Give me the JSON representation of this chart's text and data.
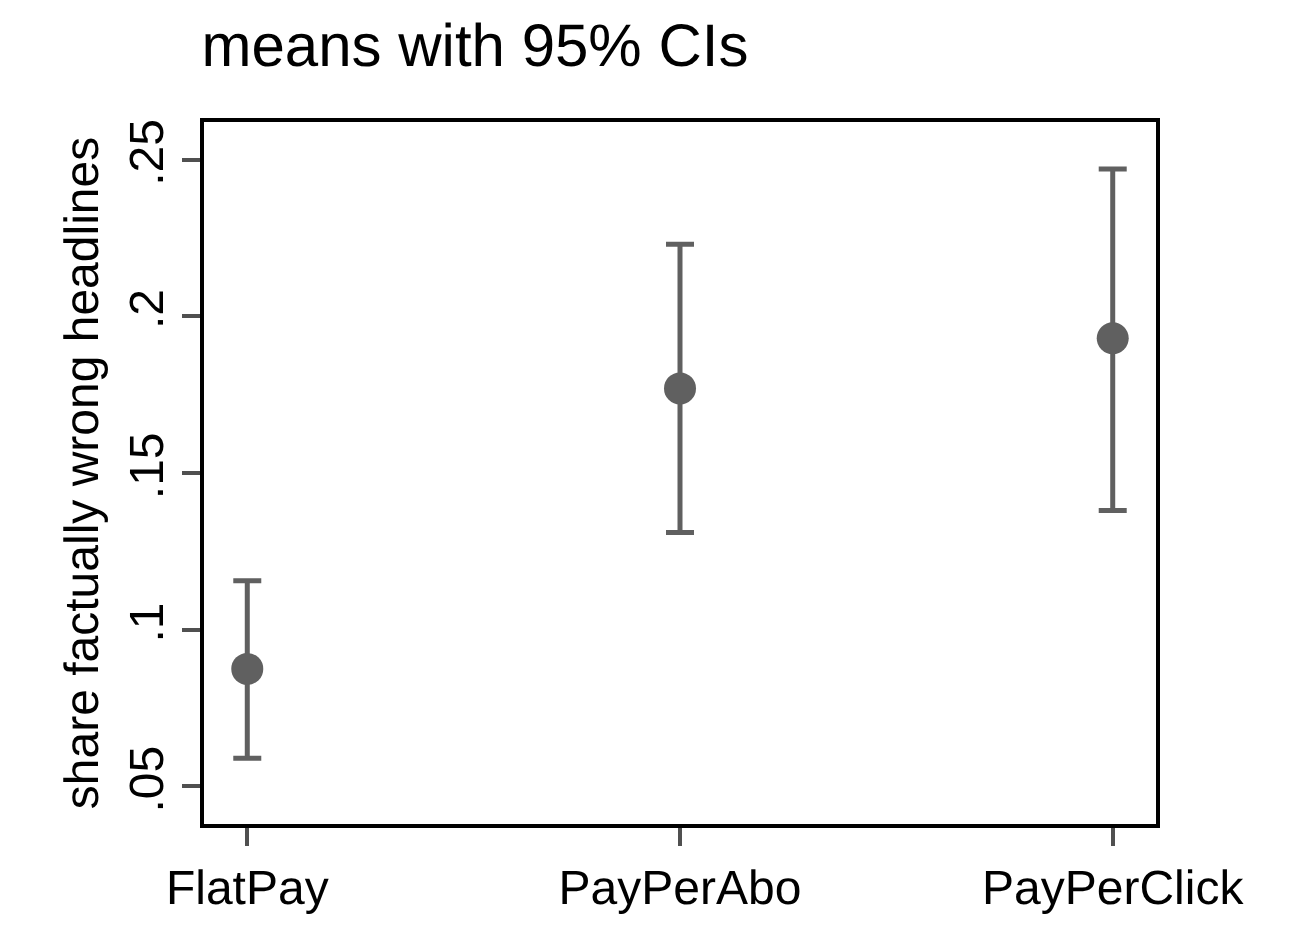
{
  "chart_data": {
    "type": "scatter",
    "title": "means with 95% CIs",
    "ylabel": "share factually wrong headlines",
    "categories": [
      "FlatPay",
      "PayPerAbo",
      "PayPerClick"
    ],
    "series": [
      {
        "color": "#606060",
        "values": [
          0.0875,
          0.177,
          0.193
        ],
        "errors": [
          [
            0.059,
            0.1156
          ],
          [
            0.131,
            0.223
          ],
          [
            0.138,
            0.247
          ]
        ]
      }
    ],
    "ylim": [
      0.038,
      0.262
    ],
    "yticks": [
      {
        "value": 0.05,
        "label": ".05"
      },
      {
        "value": 0.1,
        "label": ".1"
      },
      {
        "value": 0.15,
        "label": ".15"
      },
      {
        "value": 0.2,
        "label": ".2"
      },
      {
        "value": 0.25,
        "label": ".25"
      }
    ],
    "marker": "circle"
  }
}
